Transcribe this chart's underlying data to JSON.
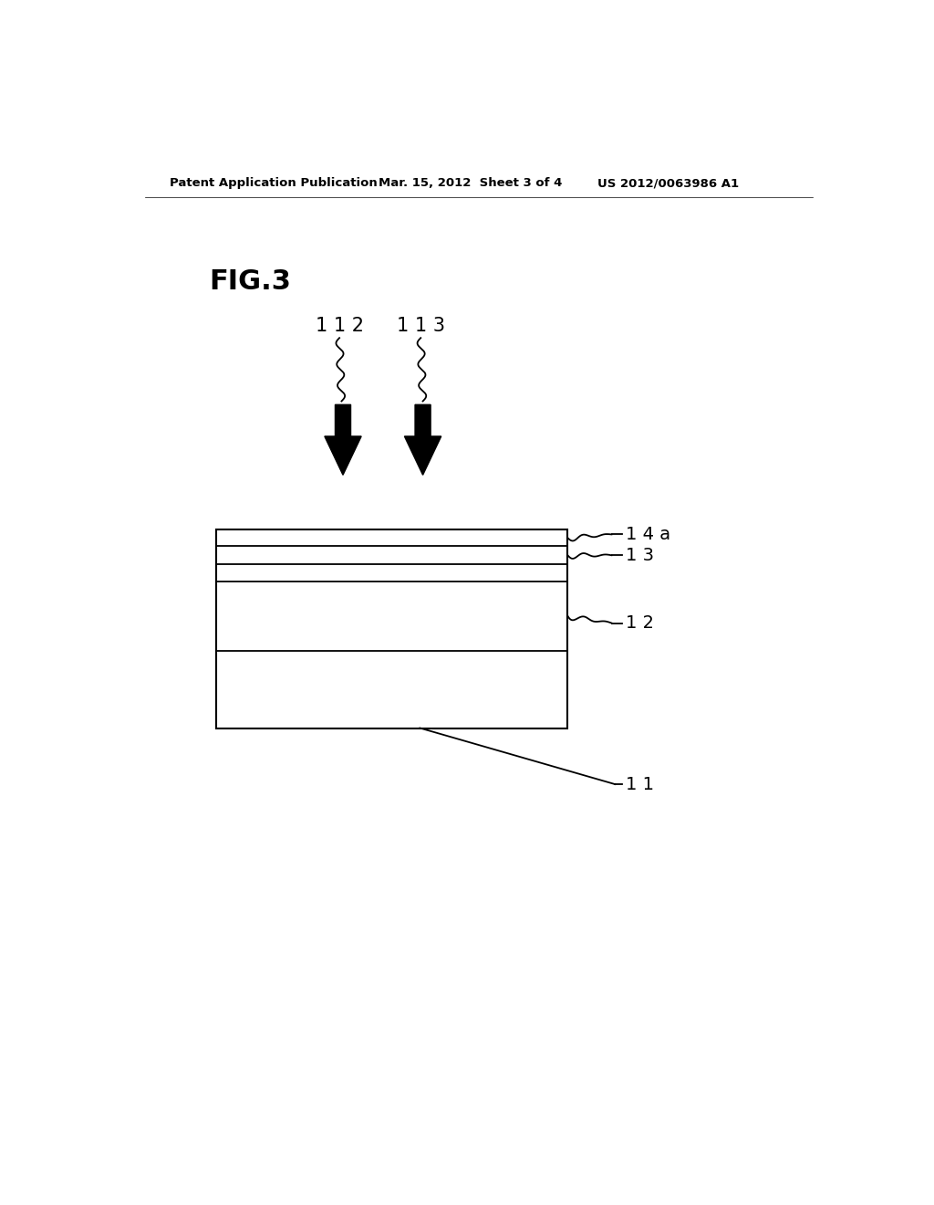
{
  "background_color": "#ffffff",
  "header_left": "Patent Application Publication",
  "header_center": "Mar. 15, 2012  Sheet 3 of 4",
  "header_right": "US 2012/0063986 A1",
  "fig_label": "FIG.3",
  "label_112": "1 1 2",
  "label_113": "1 1 3",
  "ref_14a_label": "1 4 a",
  "ref_13_label": "1 3",
  "ref_12_label": "1 2",
  "ref_11_label": "1 1"
}
